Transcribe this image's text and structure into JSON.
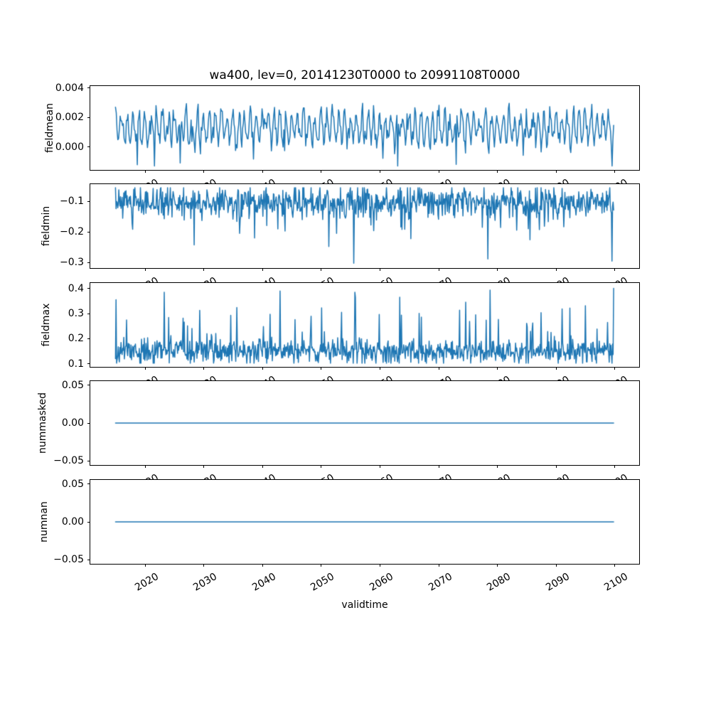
{
  "figure": {
    "title": "wa400, lev=0, 20141230T0000 to 20991108T0000",
    "xlabel": "validtime",
    "line_color": "#1f77b4",
    "spine_color": "#000000",
    "background": "#ffffff"
  },
  "xaxis": {
    "label": "validtime",
    "xlim": [
      2010.7,
      2104.2
    ],
    "ticks": [
      2020,
      2030,
      2040,
      2050,
      2060,
      2070,
      2080,
      2090,
      2100
    ],
    "tick_labels": [
      "2020",
      "2030",
      "2040",
      "2050",
      "2060",
      "2070",
      "2080",
      "2090",
      "2100"
    ]
  },
  "chart_data": [
    {
      "type": "line",
      "name": "fieldmean",
      "ylabel": "fieldmean",
      "x_start": 2014.99,
      "x_end": 2099.85,
      "n_points": 640,
      "ylim": [
        -0.00157,
        0.00414
      ],
      "yticks": [
        0.0,
        0.002,
        0.004
      ],
      "ytick_labels": [
        "0.000",
        "0.002",
        "0.004"
      ],
      "gen": {
        "kind": "noisy",
        "seed": 20141230,
        "baseline": 0.0013,
        "seasonal_amp": 0.0009,
        "seasonal_phase": 2014.75,
        "noise_sd": 0.00042,
        "spike_prob": 0.015,
        "spike_sign": -1,
        "spike_min": 0.0008,
        "spike_max": 0.002,
        "clip_min": -0.0013,
        "clip_max": 0.00387,
        "deep_spikes": [
          [
            2026.0,
            -0.0011
          ],
          [
            2063.0,
            -0.0013
          ],
          [
            2073.0,
            -0.0012
          ]
        ]
      }
    },
    {
      "type": "line",
      "name": "fieldmin",
      "ylabel": "fieldmin",
      "x_start": 2014.99,
      "x_end": 2099.85,
      "n_points": 900,
      "ylim": [
        -0.3175,
        -0.0435
      ],
      "yticks": [
        -0.1,
        -0.2,
        -0.3
      ],
      "ytick_labels": [
        "−0.1",
        "−0.2",
        "−0.3"
      ],
      "gen": {
        "kind": "noisy",
        "seed": 7,
        "baseline": -0.102,
        "seasonal_amp": 0,
        "seasonal_phase": 0,
        "noise_sd": 0.026,
        "spike_prob": 0.05,
        "spike_sign": -1,
        "spike_min": 0.01,
        "spike_max": 0.12,
        "clip_min": -0.308,
        "clip_max": -0.055,
        "deep_spikes": [
          [
            2055.6,
            -0.302
          ],
          [
            2078.4,
            -0.288
          ],
          [
            2099.6,
            -0.295
          ]
        ]
      }
    },
    {
      "type": "line",
      "name": "fieldmax",
      "ylabel": "fieldmax",
      "x_start": 2014.99,
      "x_end": 2099.85,
      "n_points": 900,
      "ylim": [
        0.0885,
        0.4215
      ],
      "yticks": [
        0.1,
        0.2,
        0.3,
        0.4
      ],
      "ytick_labels": [
        "0.1",
        "0.2",
        "0.3",
        "0.4"
      ],
      "gen": {
        "kind": "noisy",
        "seed": 11,
        "baseline": 0.148,
        "seasonal_amp": 0,
        "seasonal_phase": 0,
        "noise_sd": 0.024,
        "spike_prob": 0.07,
        "spike_sign": 1,
        "spike_min": 0.02,
        "spike_max": 0.19,
        "clip_min": 0.103,
        "clip_max": 0.402,
        "deep_spikes": [
          [
            2015.05,
            0.355
          ],
          [
            2023.3,
            0.385
          ],
          [
            2043.0,
            0.39
          ],
          [
            2055.8,
            0.385
          ],
          [
            2078.8,
            0.393
          ],
          [
            2099.85,
            0.4
          ]
        ]
      }
    },
    {
      "type": "line",
      "name": "nummasked",
      "ylabel": "nummasked",
      "x_start": 2014.99,
      "x_end": 2099.85,
      "n_points": 2,
      "ylim": [
        -0.0552,
        0.0552
      ],
      "yticks": [
        0.05,
        0.0,
        -0.05
      ],
      "ytick_labels": [
        "0.05",
        "0.00",
        "−0.05"
      ],
      "gen": {
        "kind": "constant",
        "value": 0.0
      }
    },
    {
      "type": "line",
      "name": "numnan",
      "ylabel": "numnan",
      "x_start": 2014.99,
      "x_end": 2099.85,
      "n_points": 2,
      "ylim": [
        -0.0552,
        0.0552
      ],
      "yticks": [
        0.05,
        0.0,
        -0.05
      ],
      "ytick_labels": [
        "0.05",
        "0.00",
        "−0.05"
      ],
      "gen": {
        "kind": "constant",
        "value": 0.0
      }
    }
  ]
}
